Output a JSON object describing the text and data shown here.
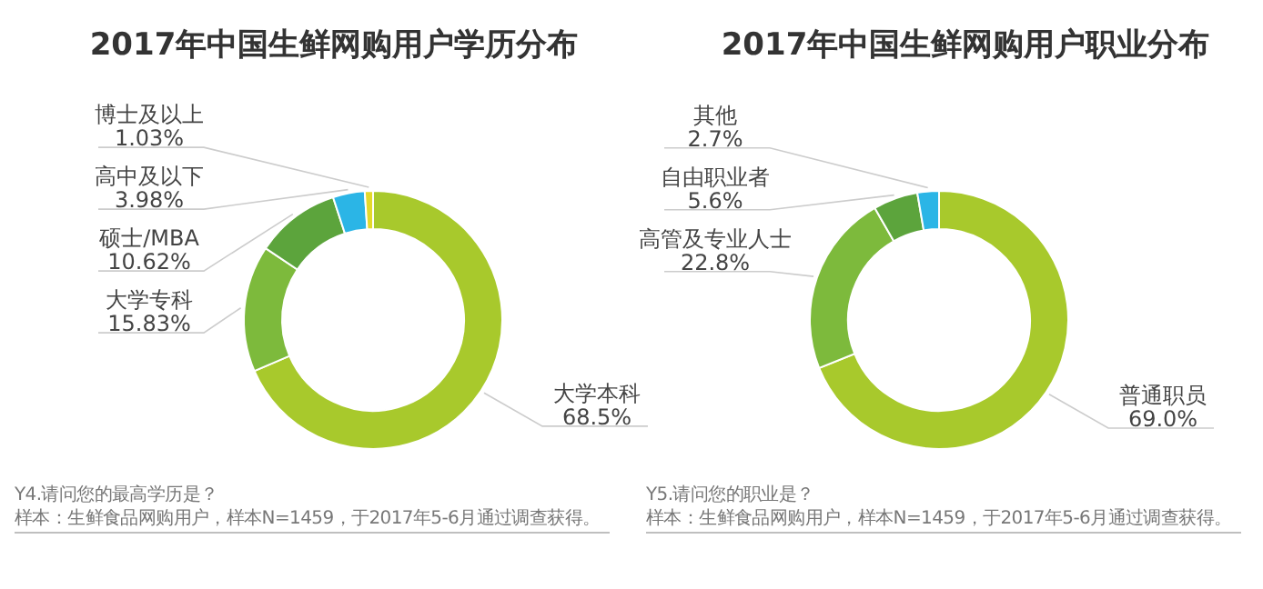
{
  "chart_data": [
    {
      "type": "donut",
      "title": "2017年中国生鲜网购用户学历分布",
      "categories": [
        "大学本科",
        "大学专科",
        "硕士/MBA",
        "高中及以下",
        "博士及以上"
      ],
      "values": [
        68.5,
        15.83,
        10.62,
        3.98,
        1.03
      ],
      "colors": [
        "#a8c92c",
        "#7dba3c",
        "#5ca43c",
        "#2bb5e6",
        "#e3d92c"
      ],
      "value_labels": [
        "68.5%",
        "15.83%",
        "10.62%",
        "3.98%",
        "1.03%"
      ],
      "annotations": [
        "Y4.请问您的最高学历是？",
        "样本：生鲜食品网购用户，样本N=1459，于2017年5-6月通过调查获得。"
      ]
    },
    {
      "type": "donut",
      "title": "2017年中国生鲜网购用户职业分布",
      "categories": [
        "普通职员",
        "高管及专业人士",
        "自由职业者",
        "其他"
      ],
      "values": [
        69.0,
        22.8,
        5.6,
        2.7
      ],
      "colors": [
        "#a8c92c",
        "#7dba3c",
        "#5ca43c",
        "#2bb5e6"
      ],
      "value_labels": [
        "69.0%",
        "22.8%",
        "5.6%",
        "2.7%"
      ],
      "annotations": [
        "Y5.请问您的职业是？",
        "样本：生鲜食品网购用户，样本N=1459，于2017年5-6月通过调查获得。"
      ]
    }
  ]
}
